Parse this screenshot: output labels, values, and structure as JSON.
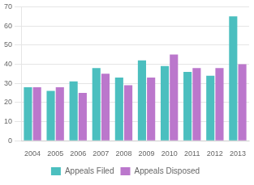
{
  "chart_data": {
    "type": "bar",
    "categories": [
      "2004",
      "2005",
      "2006",
      "2007",
      "2008",
      "2009",
      "2010",
      "2011",
      "2012",
      "2013"
    ],
    "series": [
      {
        "name": "Appeals Filed",
        "color": "#4BBFBF",
        "values": [
          28,
          26,
          31,
          38,
          33,
          42,
          39,
          36,
          34,
          65
        ]
      },
      {
        "name": "Appeals Disposed",
        "color": "#BB77CC",
        "values": [
          28,
          28,
          25,
          35,
          29,
          33,
          45,
          38,
          38,
          40
        ]
      }
    ],
    "ylim": [
      0,
      70
    ],
    "yticks": [
      0,
      10,
      20,
      30,
      40,
      50,
      60,
      70
    ],
    "grid": true,
    "legend": "bottom"
  }
}
